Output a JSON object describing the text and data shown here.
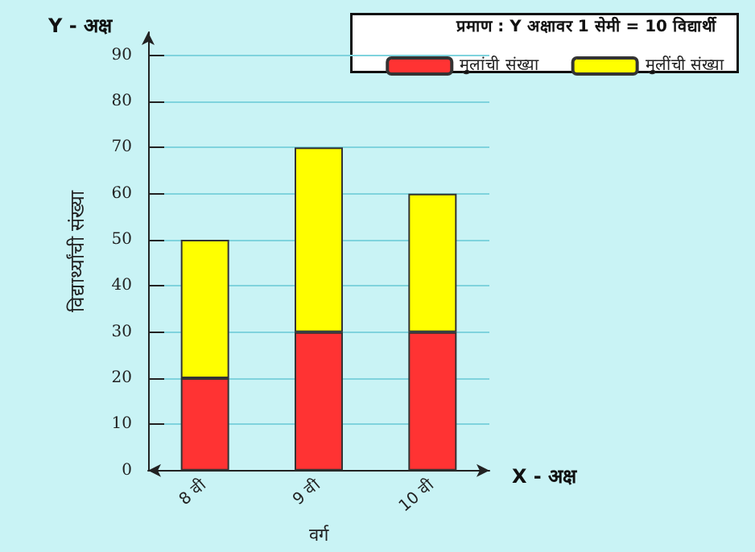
{
  "chart_data": {
    "type": "bar",
    "stacked": true,
    "categories": [
      "8 वी",
      "9 वी",
      "10 वी"
    ],
    "series": [
      {
        "name": "मुलांची संख्या",
        "color": "#ff3333",
        "values": [
          20,
          30,
          30
        ]
      },
      {
        "name": "मुलींची संख्या",
        "color": "#ffff00",
        "values": [
          30,
          40,
          30
        ]
      }
    ],
    "ylabel": "विद्यार्थ्यांची संख्या",
    "xlabel": "वर्ग",
    "annotations": [
      "प्रमाण : Y अक्षावर 1 सेमी = 10 विद्यार्थी",
      "X - अक्ष",
      "Y - अक्ष"
    ],
    "ylim": [
      0,
      95
    ],
    "yticks": [
      0,
      10,
      20,
      30,
      40,
      50,
      60,
      70,
      80,
      90
    ],
    "grid": true,
    "legend": "top right"
  }
}
